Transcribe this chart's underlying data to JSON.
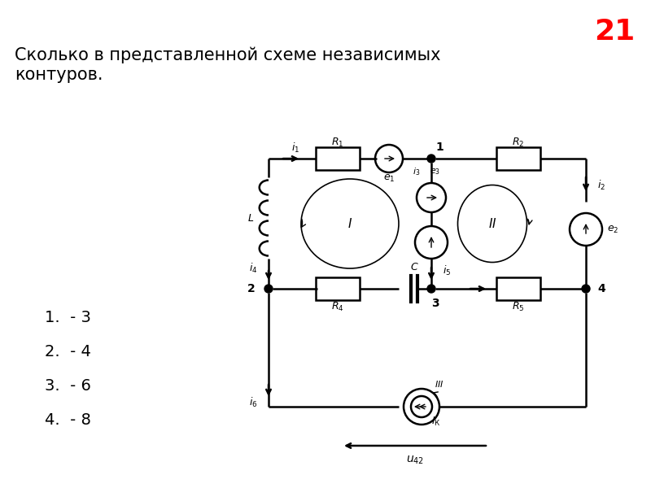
{
  "bg_color": "#ffffff",
  "title_number": "21",
  "title_color": "#ff0000",
  "title_fontsize": 26,
  "question_text": "Сколько в представленной схеме независимых\nконтуров.",
  "question_fontsize": 15,
  "answers": [
    "1.  - 3",
    "2.  - 4",
    "3.  - 6",
    "4.  - 8"
  ],
  "answer_fontsize": 14,
  "lw": 1.8
}
